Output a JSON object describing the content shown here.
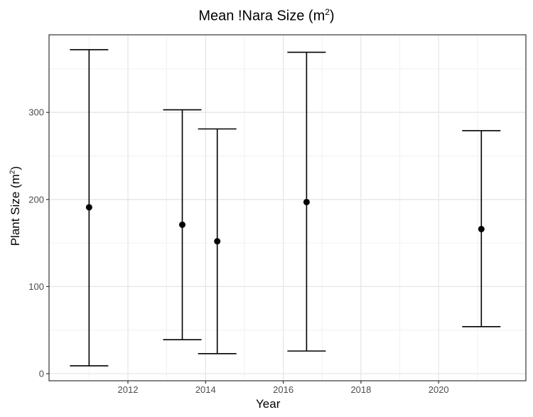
{
  "chart_data": {
    "type": "errorbar",
    "title": "Mean !Nara Size (m²)",
    "title_main": "Mean !Nara Size (m",
    "title_sup": "2",
    "title_end": ")",
    "xlabel": "Year",
    "ylabel": "Plant Size (m²)",
    "ylabel_main": "Plant Size (m",
    "ylabel_sup": "2",
    "ylabel_end": ")",
    "xlim": [
      2010.6,
      2021.8
    ],
    "ylim": [
      -8,
      382
    ],
    "x_ticks": [
      2012,
      2014,
      2016,
      2018,
      2020
    ],
    "y_ticks": [
      0,
      100,
      200,
      300
    ],
    "grid": true,
    "legend": null,
    "points": [
      {
        "x": 2011.0,
        "mean": 191,
        "upper": 372,
        "lower": 9
      },
      {
        "x": 2013.4,
        "mean": 171,
        "upper": 303,
        "lower": 39
      },
      {
        "x": 2014.3,
        "mean": 152,
        "upper": 281,
        "lower": 23
      },
      {
        "x": 2016.6,
        "mean": 197,
        "upper": 369,
        "lower": 26
      },
      {
        "x": 2021.1,
        "mean": 166,
        "upper": 279,
        "lower": 54
      }
    ]
  }
}
